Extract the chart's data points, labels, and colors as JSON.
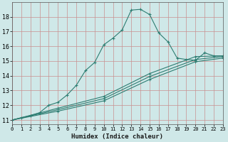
{
  "xlabel": "Humidex (Indice chaleur)",
  "xlim": [
    0,
    23
  ],
  "ylim": [
    10.7,
    19.0
  ],
  "yticks": [
    11,
    12,
    13,
    14,
    15,
    16,
    17,
    18
  ],
  "xticks": [
    0,
    1,
    2,
    3,
    4,
    5,
    6,
    7,
    8,
    9,
    10,
    11,
    12,
    13,
    14,
    15,
    16,
    17,
    18,
    19,
    20,
    21,
    22,
    23
  ],
  "bg_color": "#cfe8e8",
  "grid_color_v": "#d4a0a0",
  "grid_color_h": "#d4a0a0",
  "line_color": "#2e7d72",
  "curve1_x": [
    0,
    1,
    2,
    3,
    4,
    5,
    6,
    7,
    8,
    9,
    10,
    11,
    12,
    13,
    14,
    15,
    16,
    17,
    18,
    19,
    20,
    21,
    22,
    23
  ],
  "curve1_y": [
    11.0,
    11.15,
    11.3,
    11.5,
    12.0,
    12.2,
    12.7,
    13.35,
    14.35,
    14.9,
    16.1,
    16.55,
    17.1,
    18.45,
    18.5,
    18.15,
    16.9,
    16.3,
    15.2,
    15.1,
    15.05,
    15.55,
    15.35,
    15.35
  ],
  "curve2_x": [
    0,
    5,
    10,
    15,
    20,
    23
  ],
  "curve2_y": [
    11.0,
    11.8,
    12.6,
    14.15,
    15.3,
    15.35
  ],
  "curve3_x": [
    0,
    5,
    10,
    15,
    20,
    23
  ],
  "curve3_y": [
    11.0,
    11.7,
    12.45,
    13.95,
    15.1,
    15.3
  ],
  "curve4_x": [
    0,
    5,
    10,
    15,
    20,
    23
  ],
  "curve4_y": [
    11.0,
    11.6,
    12.3,
    13.75,
    14.95,
    15.2
  ]
}
